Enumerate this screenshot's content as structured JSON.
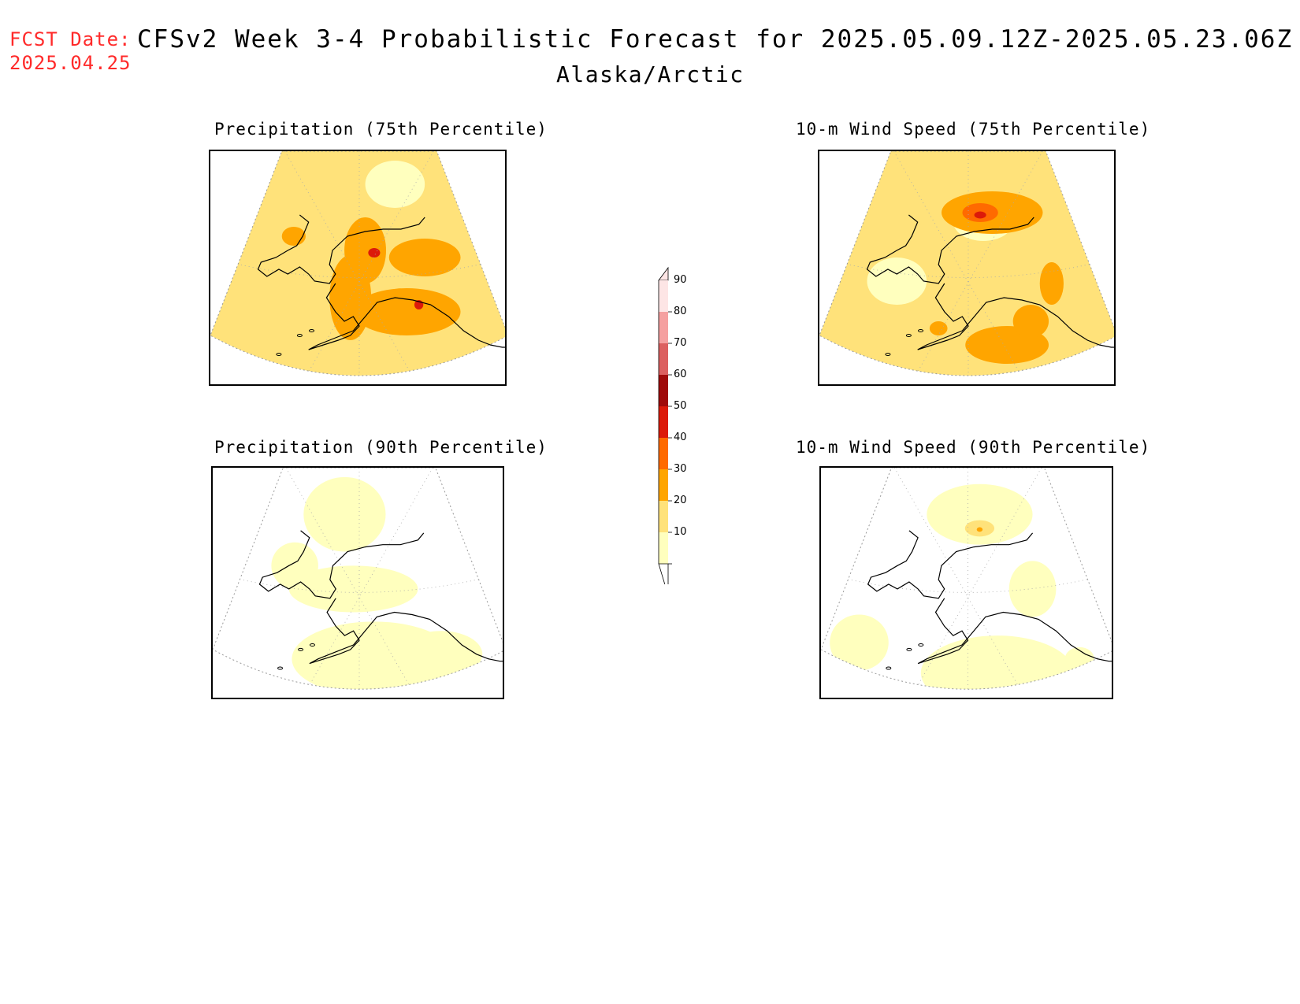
{
  "header": {
    "fcst_label": "FCST Date:",
    "fcst_date": "2025.04.25",
    "title": "CFSv2 Week 3-4 Probabilistic Forecast for 2025.05.09.12Z-2025.05.23.06Z",
    "region": "Alaska/Arctic"
  },
  "panels": [
    {
      "id": "precip-75",
      "title": "Precipitation (75th Percentile)",
      "intensity": "high"
    },
    {
      "id": "wind-75",
      "title": "10-m Wind Speed (75th Percentile)",
      "intensity": "high"
    },
    {
      "id": "precip-90",
      "title": "Precipitation (90th Percentile)",
      "intensity": "low"
    },
    {
      "id": "wind-90",
      "title": "10-m Wind Speed (90th Percentile)",
      "intensity": "low"
    }
  ],
  "colorbar": {
    "labels": [
      "90",
      "80",
      "70",
      "60",
      "50",
      "40",
      "30",
      "20",
      "10"
    ],
    "colors": [
      "#fde5e5",
      "#f5a0a0",
      "#dc6060",
      "#a00a0a",
      "#dc1a0a",
      "#ff6a00",
      "#ffa500",
      "#ffe27a",
      "#ffffbe"
    ]
  },
  "colors": {
    "c10": "#ffffbe",
    "c20": "#ffe27a",
    "c30": "#ffa500",
    "c40": "#ff6a00",
    "c50": "#dc1a0a",
    "fcst": "#ff2a2a"
  }
}
